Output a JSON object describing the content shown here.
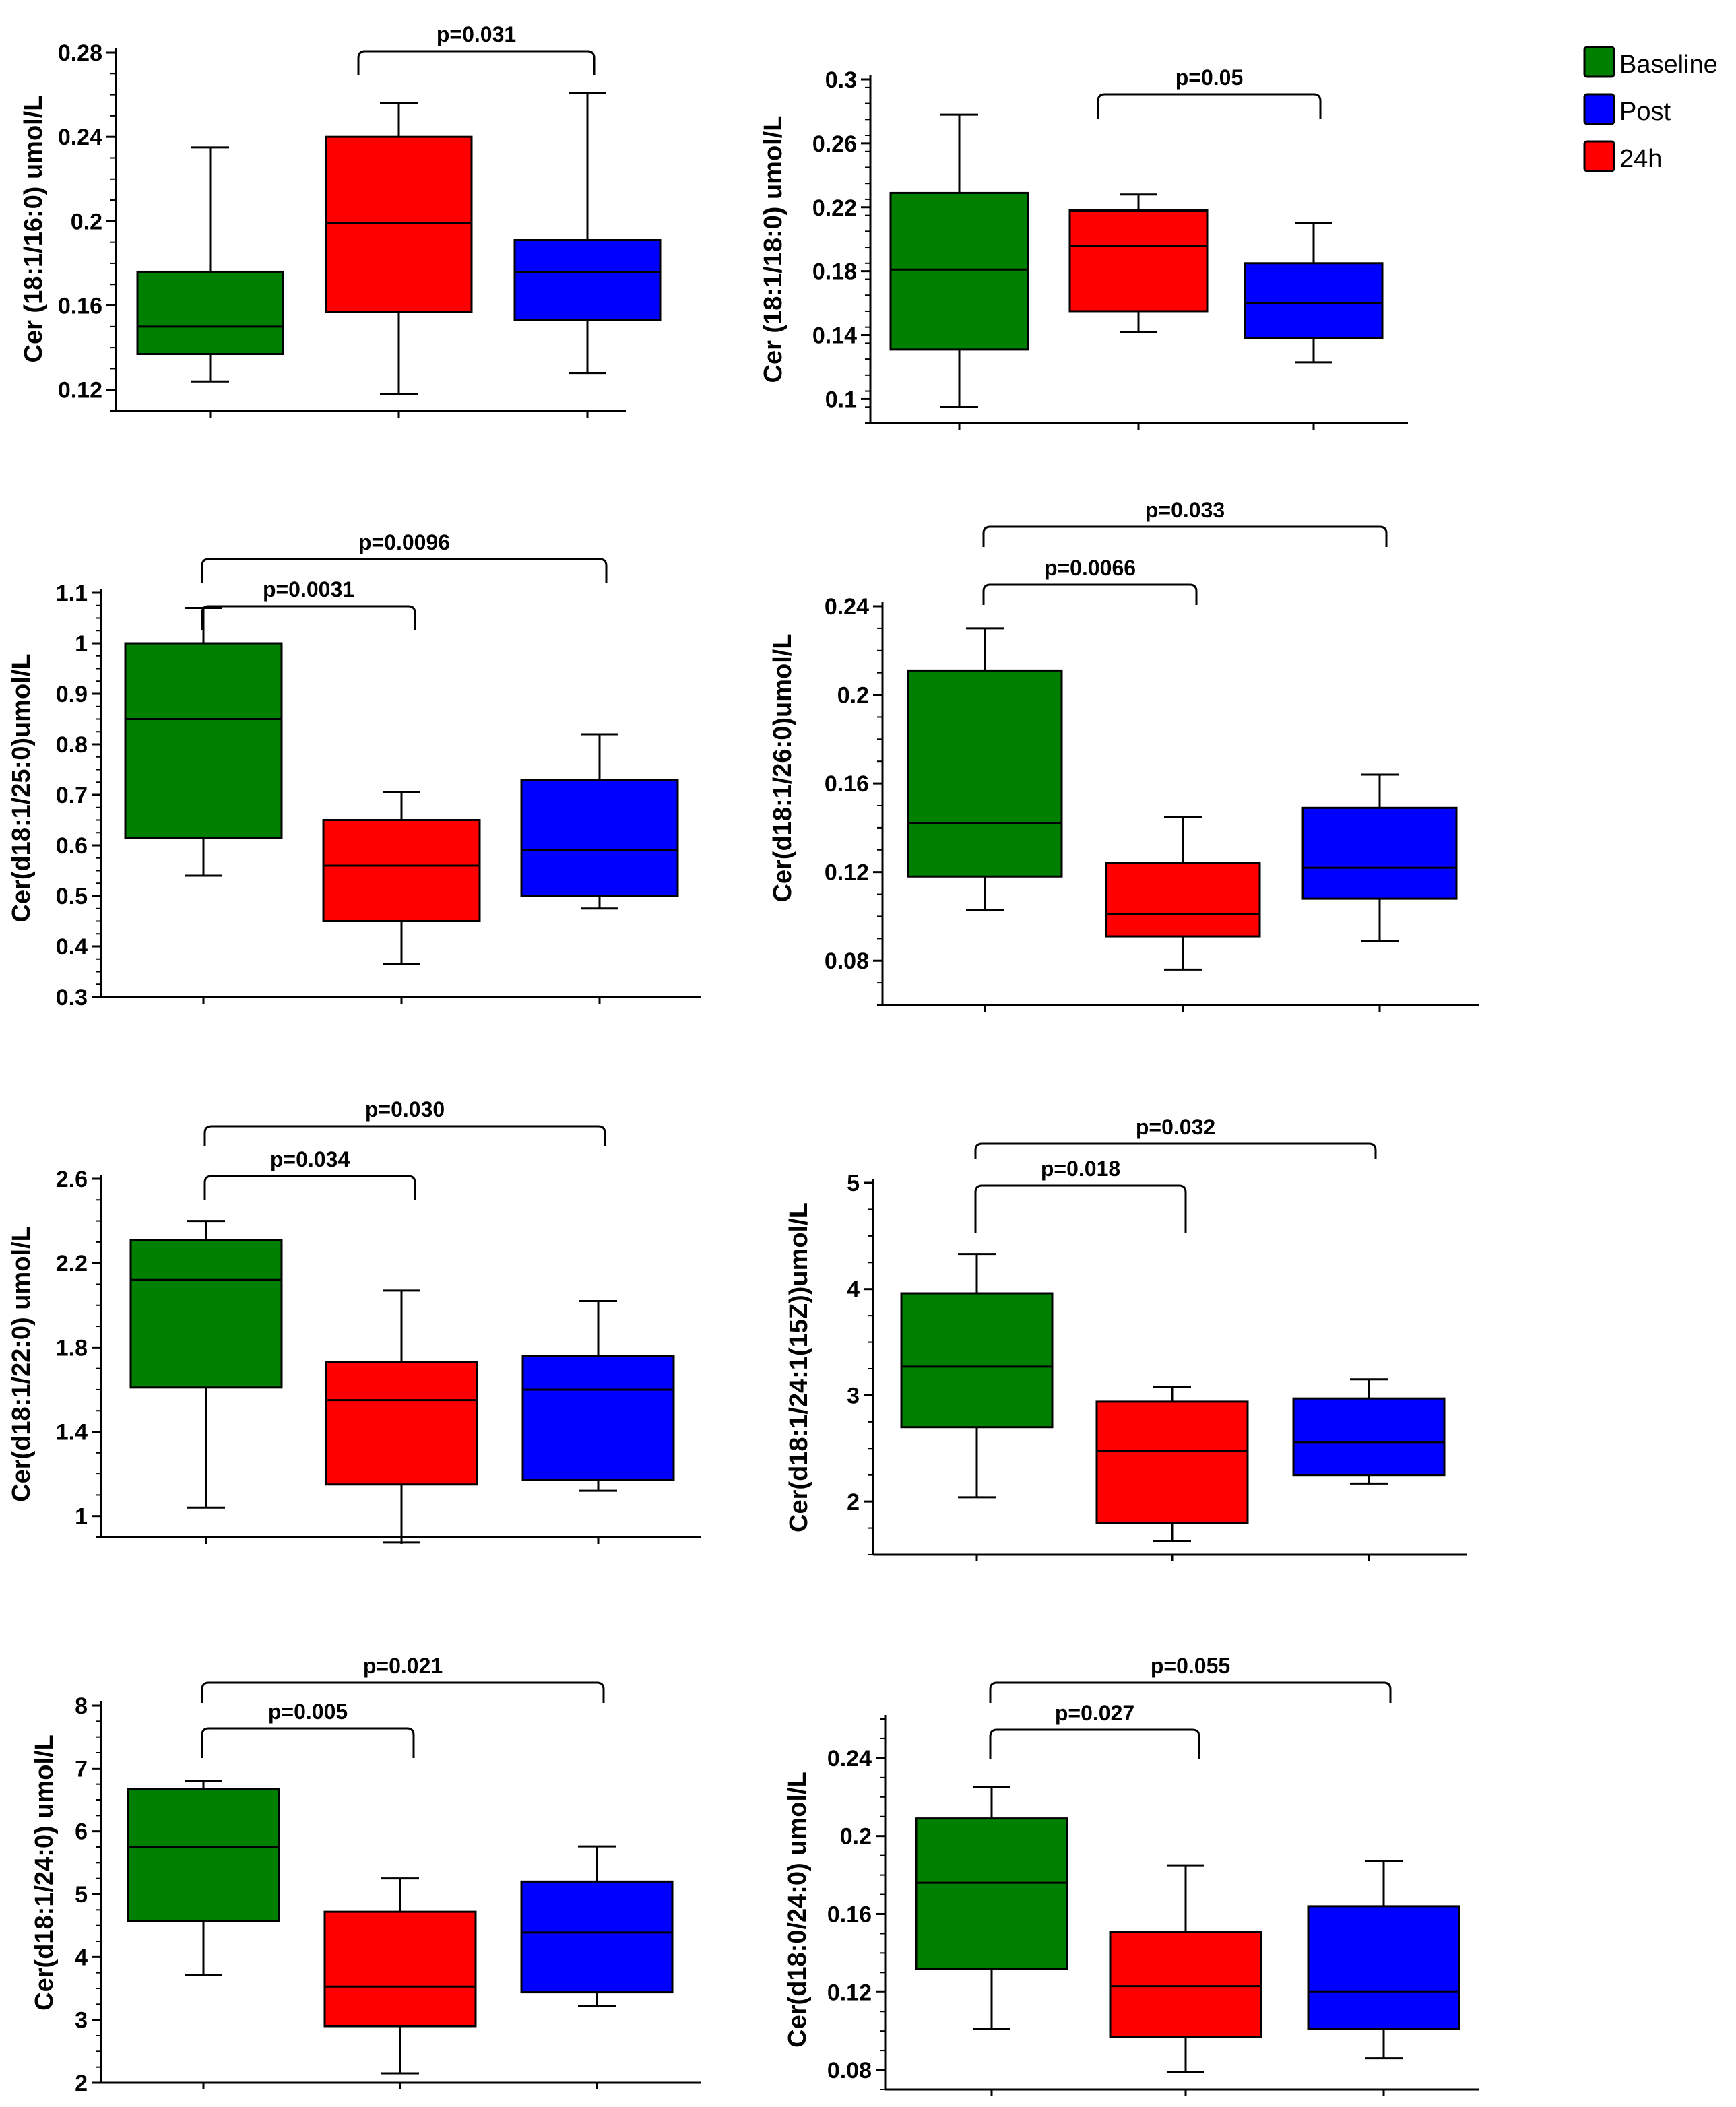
{
  "legend": [
    {
      "label": "Baseline",
      "color": "#008000"
    },
    {
      "label": "Post",
      "color": "#0000ff"
    },
    {
      "label": "24h",
      "color": "#ff0000"
    }
  ],
  "chart_data": [
    {
      "type": "box",
      "ylabel": "Cer (18:1/16:0) umol/L",
      "ylim": [
        0.11,
        0.28
      ],
      "yticks": [
        "0.12",
        "0.16",
        "0.2",
        "0.24",
        "0.28"
      ],
      "boxes": [
        {
          "color": "#008000",
          "min": 0.124,
          "q1": 0.137,
          "median": 0.15,
          "q3": 0.176,
          "max": 0.235
        },
        {
          "color": "#ff0000",
          "min": 0.118,
          "q1": 0.157,
          "median": 0.199,
          "q3": 0.24,
          "max": 0.256
        },
        {
          "color": "#0000ff",
          "min": 0.128,
          "q1": 0.153,
          "median": 0.176,
          "q3": 0.191,
          "max": 0.261
        }
      ],
      "comparisons": [
        {
          "label": "p=0.031",
          "from": 1,
          "to": 2
        }
      ]
    },
    {
      "type": "box",
      "ylabel": "Cer (18:1/18:0) umol/L",
      "ylim": [
        0.085,
        0.3
      ],
      "yticks": [
        "0.1",
        "0.14",
        "0.18",
        "0.22",
        "0.26",
        "0.3"
      ],
      "boxes": [
        {
          "color": "#008000",
          "min": 0.095,
          "q1": 0.131,
          "median": 0.181,
          "q3": 0.229,
          "max": 0.278
        },
        {
          "color": "#ff0000",
          "min": 0.142,
          "q1": 0.155,
          "median": 0.196,
          "q3": 0.218,
          "max": 0.228
        },
        {
          "color": "#0000ff",
          "min": 0.123,
          "q1": 0.138,
          "median": 0.16,
          "q3": 0.185,
          "max": 0.21
        }
      ],
      "comparisons": [
        {
          "label": "p=0.05",
          "from": 1,
          "to": 2
        }
      ]
    },
    {
      "type": "box",
      "ylabel": "Cer(d18:1/25:0)umol/L",
      "ylim": [
        0.3,
        1.1
      ],
      "yticks": [
        "0.3",
        "0.4",
        "0.5",
        "0.6",
        "0.7",
        "0.8",
        "0.9",
        "1",
        "1.1"
      ],
      "boxes": [
        {
          "color": "#008000",
          "min": 0.54,
          "q1": 0.615,
          "median": 0.85,
          "q3": 1.0,
          "max": 1.07
        },
        {
          "color": "#ff0000",
          "min": 0.365,
          "q1": 0.45,
          "median": 0.56,
          "q3": 0.65,
          "max": 0.705
        },
        {
          "color": "#0000ff",
          "min": 0.475,
          "q1": 0.5,
          "median": 0.59,
          "q3": 0.73,
          "max": 0.82
        }
      ],
      "comparisons": [
        {
          "label": "p=0.0096",
          "from": 0,
          "to": 2
        },
        {
          "label": "p=0.0031",
          "from": 0,
          "to": 1
        }
      ]
    },
    {
      "type": "box",
      "ylabel": "Cer(d18:1/26:0)umol/L",
      "ylim": [
        0.06,
        0.24
      ],
      "yticks": [
        "0.08",
        "0.12",
        "0.16",
        "0.2",
        "0.24"
      ],
      "boxes": [
        {
          "color": "#008000",
          "min": 0.103,
          "q1": 0.118,
          "median": 0.142,
          "q3": 0.211,
          "max": 0.23
        },
        {
          "color": "#ff0000",
          "min": 0.076,
          "q1": 0.091,
          "median": 0.101,
          "q3": 0.124,
          "max": 0.145
        },
        {
          "color": "#0000ff",
          "min": 0.089,
          "q1": 0.108,
          "median": 0.122,
          "q3": 0.149,
          "max": 0.164
        }
      ],
      "comparisons": [
        {
          "label": "p=0.033",
          "from": 0,
          "to": 2
        },
        {
          "label": "p=0.0066",
          "from": 0,
          "to": 1
        }
      ]
    },
    {
      "type": "box",
      "ylabel": "Cer(d18:1/22:0) umol/L",
      "ylim": [
        0.9,
        2.6
      ],
      "yticks": [
        "1",
        "1.4",
        "1.8",
        "2.2",
        "2.6"
      ],
      "boxes": [
        {
          "color": "#008000",
          "min": 1.04,
          "q1": 1.61,
          "median": 2.12,
          "q3": 2.31,
          "max": 2.4
        },
        {
          "color": "#ff0000",
          "min": 0.875,
          "q1": 1.15,
          "median": 1.55,
          "q3": 1.73,
          "max": 2.07
        },
        {
          "color": "#0000ff",
          "min": 1.12,
          "q1": 1.17,
          "median": 1.6,
          "q3": 1.76,
          "max": 2.02
        }
      ],
      "comparisons": [
        {
          "label": "p=0.030",
          "from": 0,
          "to": 2
        },
        {
          "label": "p=0.034",
          "from": 0,
          "to": 1
        }
      ]
    },
    {
      "type": "box",
      "ylabel": "Cer(d18:1/24:1(15Z))umol/L",
      "ylim": [
        1.5,
        5.0
      ],
      "yticks": [
        "2",
        "3",
        "4",
        "5"
      ],
      "boxes": [
        {
          "color": "#008000",
          "min": 2.04,
          "q1": 2.7,
          "median": 3.27,
          "q3": 3.96,
          "max": 4.33
        },
        {
          "color": "#ff0000",
          "min": 1.63,
          "q1": 1.8,
          "median": 2.48,
          "q3": 2.94,
          "max": 3.08
        },
        {
          "color": "#0000ff",
          "min": 2.17,
          "q1": 2.25,
          "median": 2.56,
          "q3": 2.97,
          "max": 3.15
        }
      ],
      "comparisons": [
        {
          "label": "p=0.032",
          "from": 0,
          "to": 2
        },
        {
          "label": "p=0.018",
          "from": 0,
          "to": 1
        }
      ]
    },
    {
      "type": "box",
      "ylabel": "Cer(d18:1/24:0) umol/L",
      "ylim": [
        2,
        8
      ],
      "yticks": [
        "2",
        "3",
        "4",
        "5",
        "6",
        "7",
        "8"
      ],
      "boxes": [
        {
          "color": "#008000",
          "min": 3.72,
          "q1": 4.57,
          "median": 5.75,
          "q3": 6.67,
          "max": 6.8
        },
        {
          "color": "#ff0000",
          "min": 2.15,
          "q1": 2.9,
          "median": 3.53,
          "q3": 4.72,
          "max": 5.25
        },
        {
          "color": "#0000ff",
          "min": 3.22,
          "q1": 3.44,
          "median": 4.39,
          "q3": 5.2,
          "max": 5.76
        }
      ],
      "comparisons": [
        {
          "label": "p=0.021",
          "from": 0,
          "to": 2
        },
        {
          "label": "p=0.005",
          "from": 0,
          "to": 1
        }
      ]
    },
    {
      "type": "box",
      "ylabel": "Cer(d18:0/24:0) umol/L",
      "ylim": [
        0.07,
        0.26
      ],
      "yticks": [
        "0.08",
        "0.12",
        "0.16",
        "0.2",
        "0.24"
      ],
      "boxes": [
        {
          "color": "#008000",
          "min": 0.101,
          "q1": 0.132,
          "median": 0.176,
          "q3": 0.209,
          "max": 0.225
        },
        {
          "color": "#ff0000",
          "min": 0.079,
          "q1": 0.097,
          "median": 0.123,
          "q3": 0.151,
          "max": 0.185
        },
        {
          "color": "#0000ff",
          "min": 0.086,
          "q1": 0.101,
          "median": 0.12,
          "q3": 0.164,
          "max": 0.187
        }
      ],
      "comparisons": [
        {
          "label": "p=0.055",
          "from": 0,
          "to": 2
        },
        {
          "label": "p=0.027",
          "from": 0,
          "to": 1
        }
      ]
    }
  ]
}
